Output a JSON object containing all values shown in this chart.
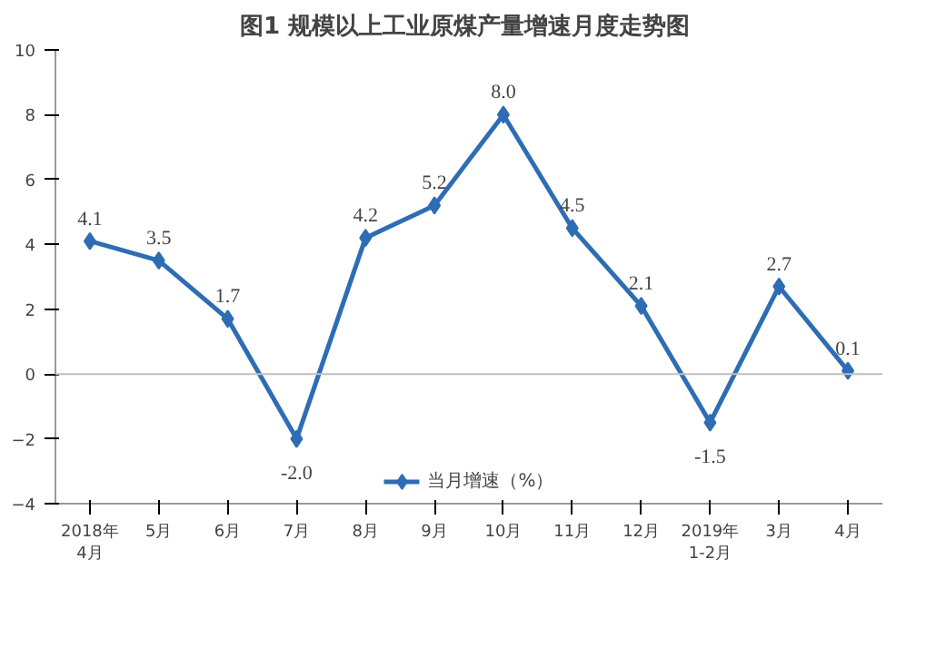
{
  "chart_data": {
    "type": "line",
    "title": "图1  规模以上工业原煤产量增速月度走势图",
    "categories": [
      "2018年4月",
      "5月",
      "6月",
      "7月",
      "8月",
      "9月",
      "10月",
      "11月",
      "12月",
      "2019年1-2月",
      "3月",
      "4月"
    ],
    "series": [
      {
        "name": "当月增速（%）",
        "color": "#2e6db4",
        "values": [
          4.1,
          3.5,
          1.7,
          -2.0,
          4.2,
          5.2,
          8.0,
          4.5,
          2.1,
          -1.5,
          2.7,
          0.1
        ],
        "value_labels": [
          "4.1",
          "3.5",
          "1.7",
          "-2.0",
          "4.2",
          "5.2",
          "8.0",
          "4.5",
          "2.1",
          "-1.5",
          "2.7",
          "0.1"
        ]
      }
    ],
    "ylim": [
      -4,
      10
    ],
    "yticks": [
      -4,
      -2,
      0,
      2,
      4,
      6,
      8,
      10
    ],
    "ref_lines": [
      {
        "axis": "y",
        "value": 0,
        "color": "#bfbfbf"
      }
    ],
    "marker": "diamond",
    "legend": "bottom",
    "grid": false
  }
}
